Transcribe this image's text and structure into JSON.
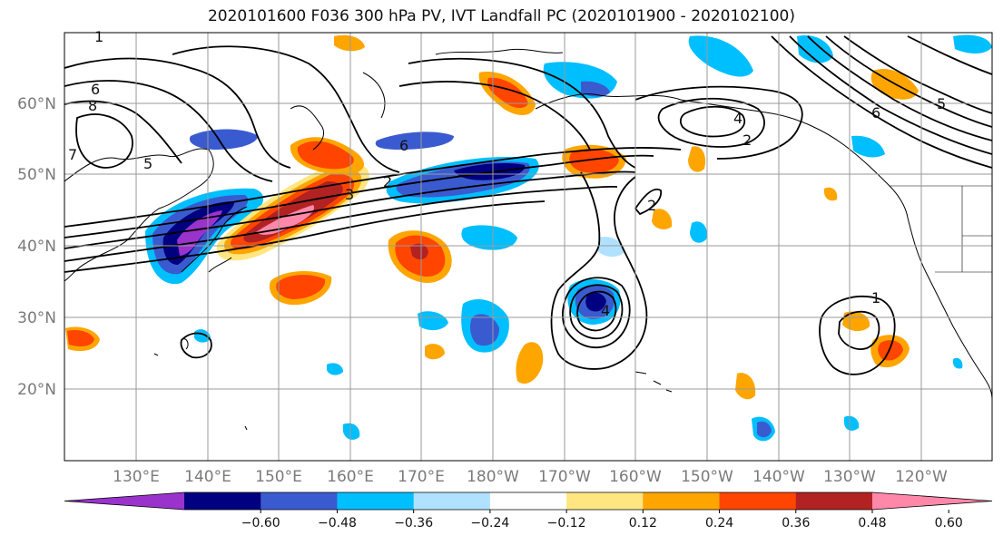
{
  "title": "2020101600 F036 300 hPa PV, IVT Landfall PC (2020101900 - 2020102100)",
  "lat_labels": [
    "60°N",
    "50°N",
    "40°N",
    "30°N",
    "20°N"
  ],
  "lon_labels": [
    "130°E",
    "140°E",
    "150°E",
    "160°E",
    "170°E",
    "180°W",
    "170°W",
    "160°W",
    "150°W",
    "140°W",
    "130°W",
    "120°W"
  ],
  "colorbar": {
    "ticks": [
      "−0.60",
      "−0.48",
      "−0.36",
      "−0.24",
      "−0.12",
      "0.12",
      "0.24",
      "0.36",
      "0.48",
      "0.60"
    ],
    "colors": [
      "#9933cc",
      "#000080",
      "#3a5bd0",
      "#00bfff",
      "#b0e2ff",
      "#ffffff",
      "#ffe680",
      "#ffa500",
      "#ff4500",
      "#b22222",
      "#ff88aa"
    ]
  },
  "contour_labels": [
    "1",
    "2",
    "3",
    "4",
    "5",
    "6",
    "7",
    "8",
    "2",
    "4",
    "6",
    "2",
    "4",
    "1",
    "6",
    "5"
  ]
}
